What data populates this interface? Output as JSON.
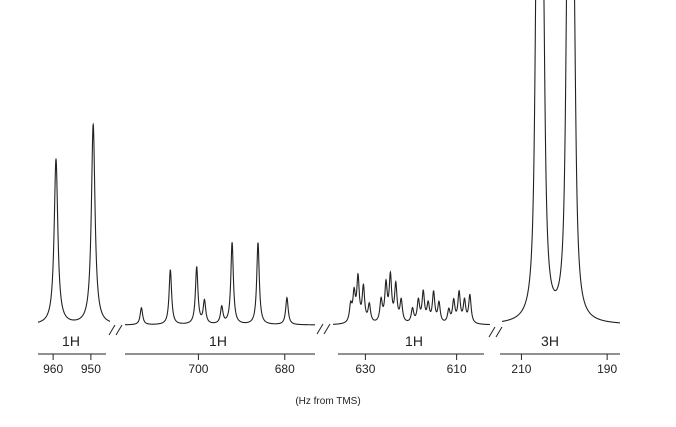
{
  "chart_data": {
    "type": "line",
    "title": "",
    "xlabel": "(Hz from TMS)",
    "ylabel": "",
    "grid": false,
    "legend": "none",
    "segments": [
      {
        "label": "1H",
        "xlim": [
          964,
          946
        ],
        "ticks": [
          960,
          950
        ],
        "peaks": [
          {
            "x": 959.5,
            "height": 165,
            "width": 0.55
          },
          {
            "x": 950.2,
            "height": 200,
            "width": 0.55
          }
        ]
      },
      {
        "label": "1H",
        "xlim": [
          717,
          673
        ],
        "ticks": [
          700,
          680
        ],
        "peaks": [
          {
            "x": 713.2,
            "height": 17,
            "width": 0.35
          },
          {
            "x": 706.5,
            "height": 55,
            "width": 0.35
          },
          {
            "x": 700.4,
            "height": 57,
            "width": 0.35
          },
          {
            "x": 698.6,
            "height": 23,
            "width": 0.35
          },
          {
            "x": 694.6,
            "height": 17,
            "width": 0.35
          },
          {
            "x": 692.2,
            "height": 82,
            "width": 0.35
          },
          {
            "x": 686.2,
            "height": 82,
            "width": 0.35
          },
          {
            "x": 679.5,
            "height": 27,
            "width": 0.35
          }
        ]
      },
      {
        "label": "1H",
        "xlim": [
          636,
          604
        ],
        "ticks": [
          630,
          610
        ],
        "peaks": [
          {
            "x": 632.4,
            "height": 17,
            "width": 0.3
          },
          {
            "x": 631.7,
            "height": 28,
            "width": 0.3
          },
          {
            "x": 630.9,
            "height": 44,
            "width": 0.3
          },
          {
            "x": 629.8,
            "height": 35,
            "width": 0.3
          },
          {
            "x": 628.6,
            "height": 18,
            "width": 0.3
          },
          {
            "x": 626.2,
            "height": 22,
            "width": 0.3
          },
          {
            "x": 625.2,
            "height": 37,
            "width": 0.3
          },
          {
            "x": 624.3,
            "height": 45,
            "width": 0.3
          },
          {
            "x": 623.2,
            "height": 37,
            "width": 0.3
          },
          {
            "x": 622.1,
            "height": 22,
            "width": 0.3
          },
          {
            "x": 619.8,
            "height": 14,
            "width": 0.3
          },
          {
            "x": 618.6,
            "height": 22,
            "width": 0.3
          },
          {
            "x": 617.6,
            "height": 30,
            "width": 0.3
          },
          {
            "x": 616.6,
            "height": 18,
            "width": 0.3
          },
          {
            "x": 615.5,
            "height": 30,
            "width": 0.3
          },
          {
            "x": 614.4,
            "height": 20,
            "width": 0.3
          },
          {
            "x": 612.4,
            "height": 13,
            "width": 0.3
          },
          {
            "x": 611.4,
            "height": 22,
            "width": 0.3
          },
          {
            "x": 610.3,
            "height": 30,
            "width": 0.3
          },
          {
            "x": 609.2,
            "height": 22,
            "width": 0.3
          },
          {
            "x": 608.1,
            "height": 28,
            "width": 0.3
          }
        ]
      },
      {
        "label": "3H",
        "xlim": [
          215,
          187
        ],
        "ticks": [
          210,
          190
        ],
        "peaks": [
          {
            "x": 206.8,
            "height": 290,
            "width": 0.5
          },
          {
            "x": 206.0,
            "height": 330,
            "width": 0.5
          },
          {
            "x": 205.2,
            "height": 250,
            "width": 0.5
          },
          {
            "x": 199.5,
            "height": 280,
            "width": 0.5
          },
          {
            "x": 198.7,
            "height": 320,
            "width": 0.5
          },
          {
            "x": 197.9,
            "height": 240,
            "width": 0.5
          }
        ]
      }
    ]
  }
}
